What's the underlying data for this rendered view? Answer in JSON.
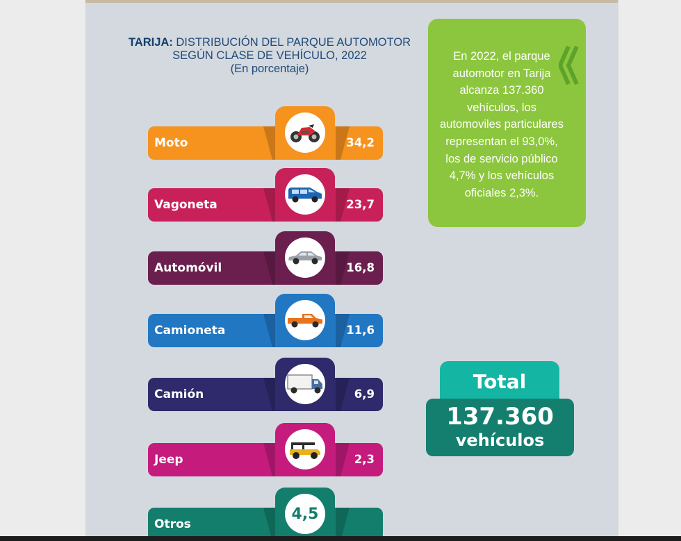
{
  "title": {
    "bold": "TARIJA:",
    "line1": " DISTRIBUCIÓN DEL PARQUE AUTOMOTOR",
    "line2": "SEGÚN CLASE DE VEHÍCULO, 2022",
    "line3": "(En porcentaje)"
  },
  "callout": {
    "lines": [
      "En 2022, el parque",
      "automotor en Tarija",
      "alcanza 137.360",
      "vehículos, los",
      "automoviles particulares",
      "representan el 93,0%,",
      "los de servicio público",
      "4,7% y los vehículos",
      "oficiales 2,3%."
    ]
  },
  "total": {
    "label": "Total",
    "value": "137.360",
    "unit": "vehículos"
  },
  "colors": {
    "moto": "#f6921e",
    "vagoneta": "#c8215a",
    "automovil": "#6b1f4f",
    "camioneta": "#2277c2",
    "camion": "#2f2a6b",
    "jeep": "#c41b7d",
    "otros": "#137e6c",
    "callout": "#8cc63e",
    "total_head": "#15b5a4",
    "total_box": "#157f6f"
  },
  "chart_data": {
    "type": "bar",
    "title": "TARIJA: DISTRIBUCIÓN DEL PARQUE AUTOMOTOR SEGÚN CLASE DE VEHÍCULO, 2022 (En porcentaje)",
    "categories": [
      "Moto",
      "Vagoneta",
      "Automóvil",
      "Camioneta",
      "Camión",
      "Jeep",
      "Otros"
    ],
    "values": [
      34.2,
      23.7,
      16.8,
      11.6,
      6.9,
      2.3,
      4.5
    ],
    "value_labels": [
      "34,2",
      "23,7",
      "16,8",
      "11,6",
      "6,9",
      "2,3",
      "4,5"
    ],
    "icons": [
      "motorcycle-icon",
      "van-icon",
      "car-icon",
      "pickup-truck-icon",
      "truck-icon",
      "jeep-icon",
      ""
    ]
  }
}
